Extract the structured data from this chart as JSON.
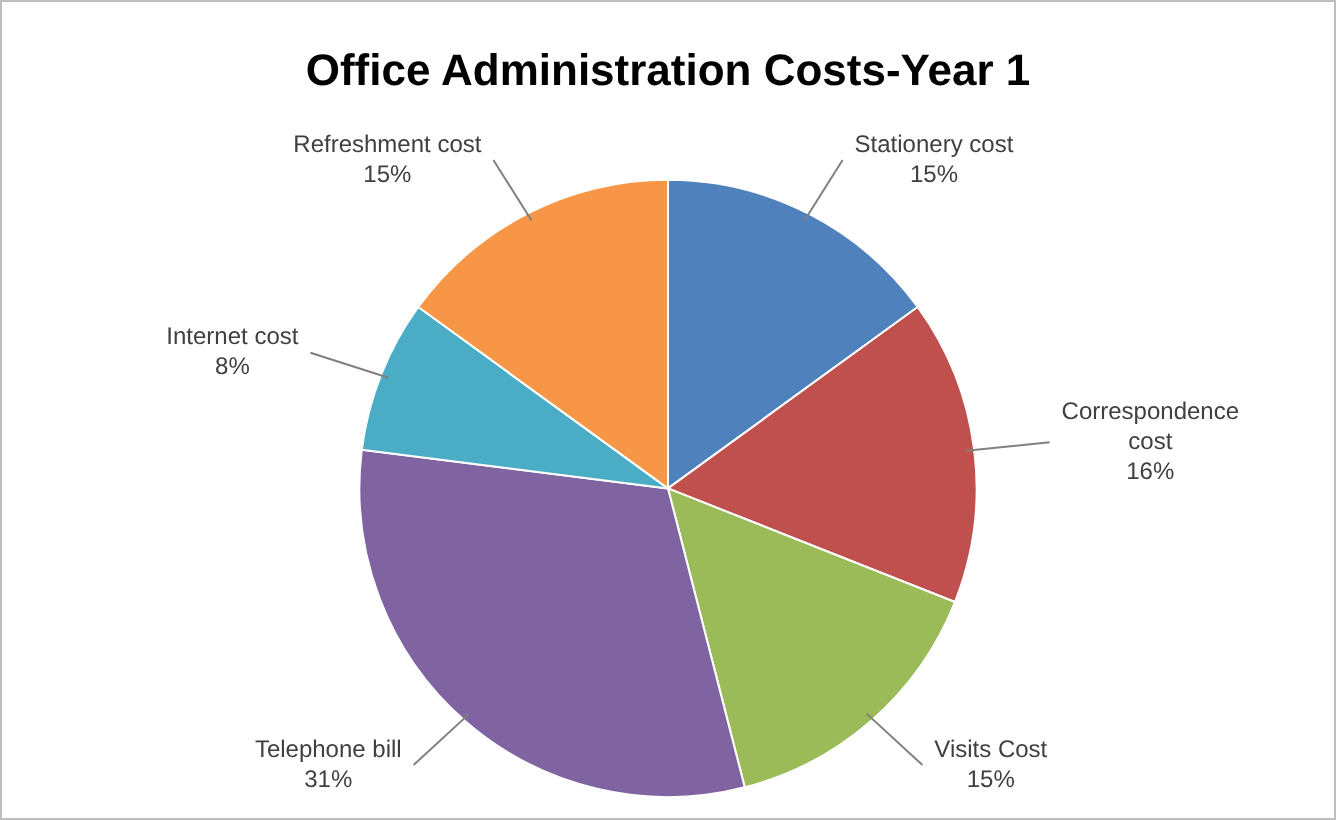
{
  "chart_data": {
    "type": "pie",
    "title": "Office Administration Costs-Year 1",
    "categories": [
      "Stationery cost",
      "Correspondence cost",
      "Visits Cost",
      "Telephone bill",
      "Internet cost",
      "Refreshment cost"
    ],
    "values": [
      15,
      16,
      15,
      31,
      8,
      15
    ],
    "value_labels": [
      "15%",
      "16%",
      "15%",
      "31%",
      "8%",
      "15%"
    ],
    "colors": [
      "#4f81bd",
      "#c0504d",
      "#9bbb59",
      "#8064a2",
      "#4bacc6",
      "#f79646"
    ],
    "legend": false
  }
}
